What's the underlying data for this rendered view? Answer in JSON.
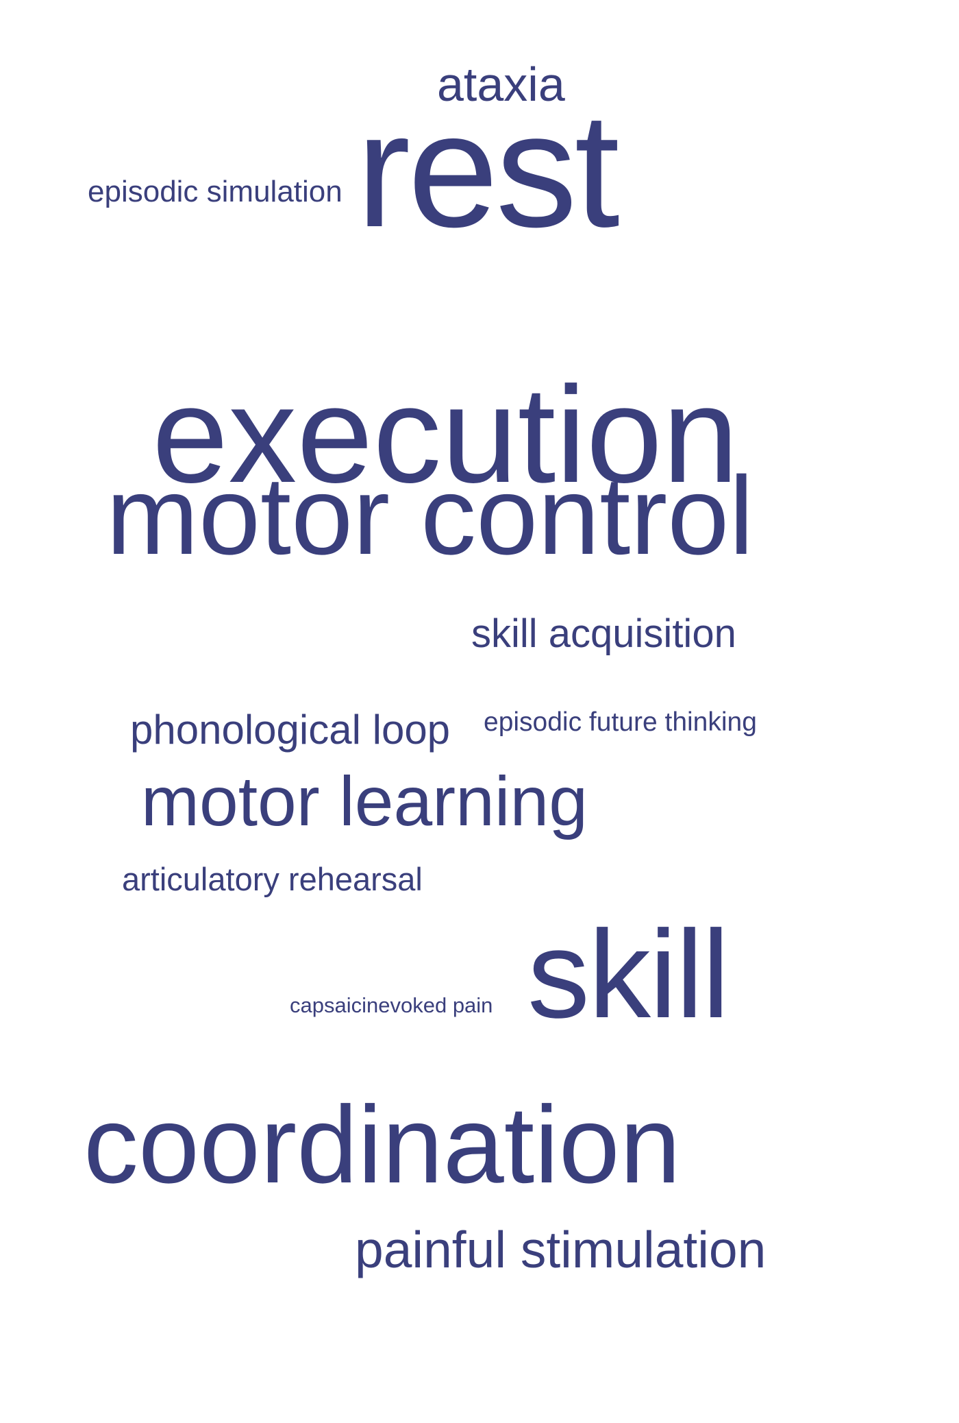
{
  "accent_color": "#3a3f7c",
  "background_color": "#ffffff",
  "words": {
    "ataxia": "ataxia",
    "rest": "rest",
    "episodic_simulation": "episodic simulation",
    "execution": "execution",
    "motor_control": "motor control",
    "skill_acquisition": "skill acquisition",
    "phonological_loop": "phonological loop",
    "episodic_future_thinking": "episodic future thinking",
    "motor_learning": "motor learning",
    "articulatory_rehearsal": "articulatory rehearsal",
    "capsaicinevoked_pain": "capsaicinevoked pain",
    "skill": "skill",
    "coordination": "coordination",
    "painful_stimulation": "painful stimulation"
  }
}
